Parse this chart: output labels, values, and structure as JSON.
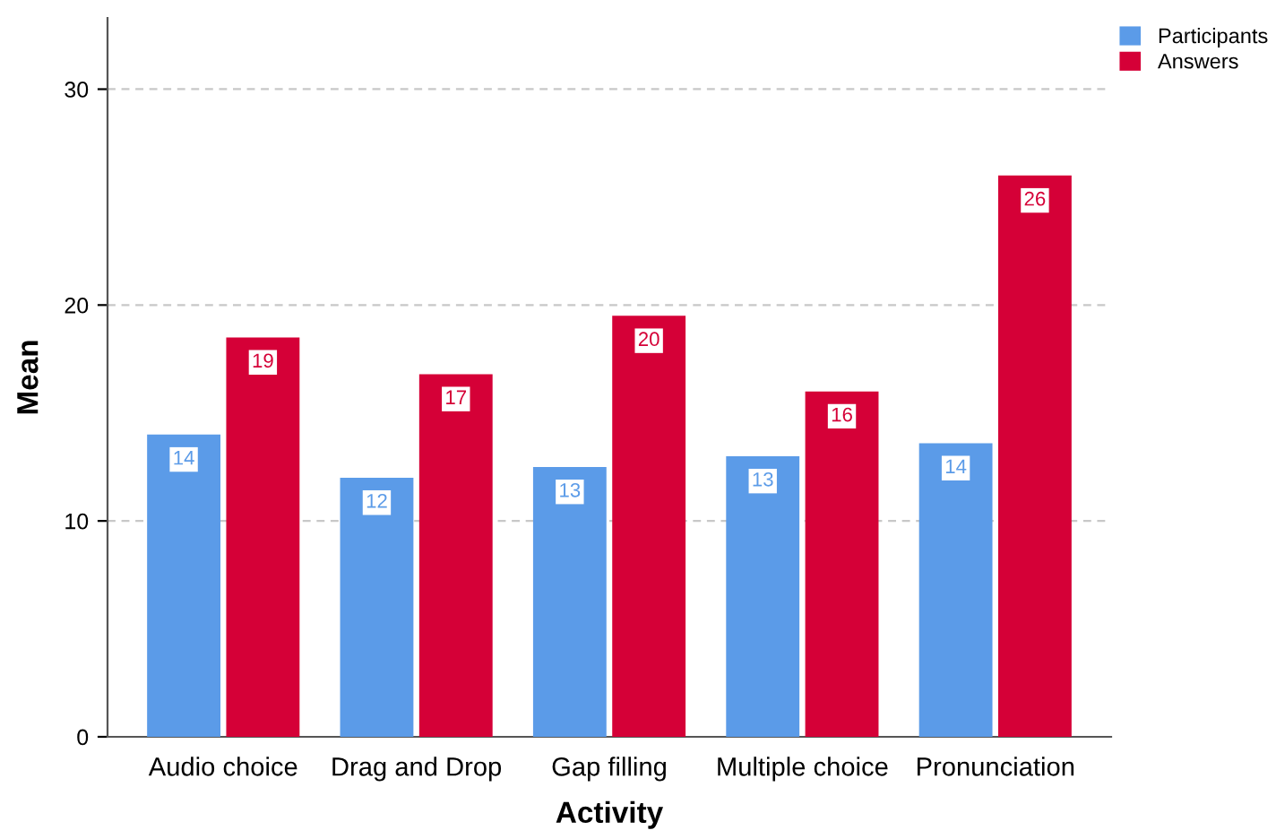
{
  "chart_data": {
    "type": "bar",
    "xlabel": "Activity",
    "ylabel": "Mean",
    "categories": [
      "Audio choice",
      "Drag and Drop",
      "Gap filling",
      "Multiple choice",
      "Pronunciation"
    ],
    "series": [
      {
        "name": "Participants",
        "color": "#5b9be8",
        "values": [
          14.0,
          12.0,
          12.5,
          13.0,
          13.6
        ],
        "value_labels": [
          "14",
          "12",
          "13",
          "13",
          "14"
        ]
      },
      {
        "name": "Answers",
        "color": "#d50037",
        "values": [
          18.5,
          16.8,
          19.5,
          16.0,
          26.0
        ],
        "value_labels": [
          "19",
          "17",
          "20",
          "16",
          "26"
        ]
      }
    ],
    "ylim": [
      0,
      33.3
    ],
    "yticks": [
      0,
      10,
      20,
      30
    ],
    "grid": "y",
    "legend": "top right"
  }
}
